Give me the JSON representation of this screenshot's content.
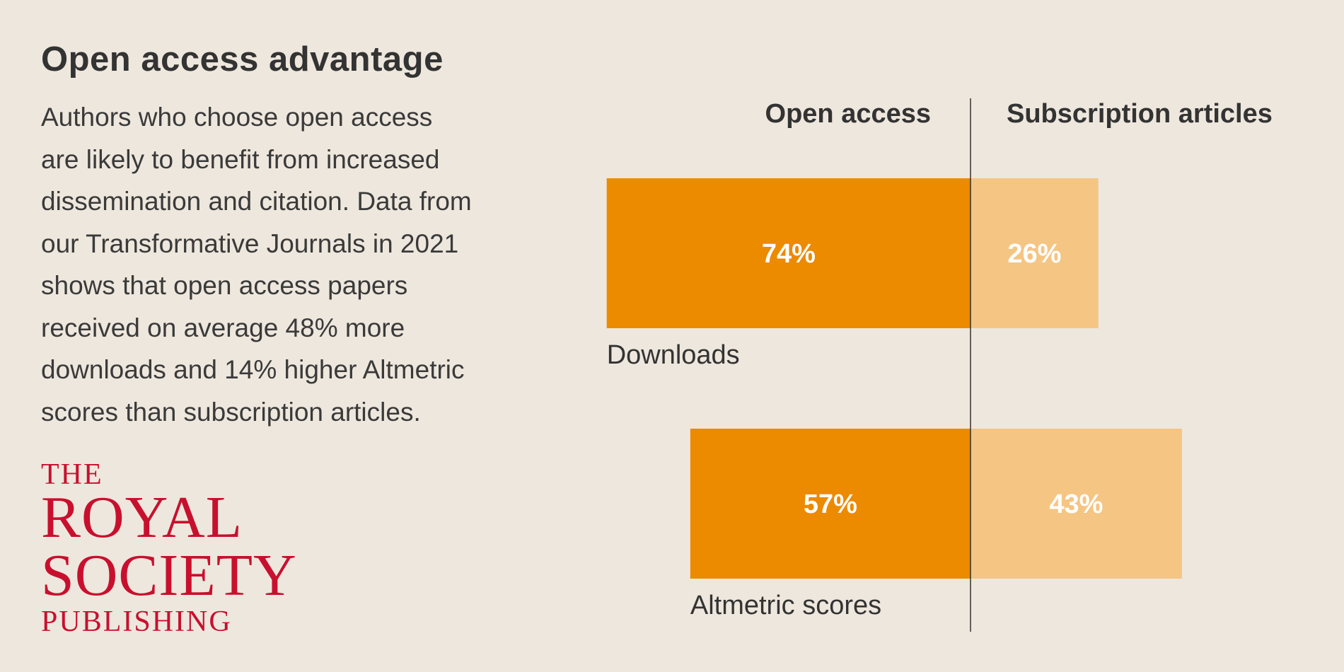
{
  "header": {
    "title": "Open access advantage",
    "body_lines": [
      "Authors who choose open access",
      "are likely to benefit from increased",
      "dissemination and citation. Data from",
      "our Transformative Journals in 2021",
      "shows that open access papers",
      "received on average 48% more",
      "downloads and 14% higher Altmetric",
      "scores than subscription articles."
    ]
  },
  "logo": {
    "line1": "THE",
    "line2": "ROYAL",
    "line3": "SOCIETY",
    "line4": "PUBLISHING"
  },
  "colors": {
    "background": "#EEE7DD",
    "open_access": "#EC8A00",
    "subscription": "#F5C583",
    "logo": "#C8102E"
  },
  "chart_data": {
    "type": "bar",
    "orientation": "horizontal diverging stacked",
    "categories": [
      "Downloads",
      "Altmetric scores"
    ],
    "series": [
      {
        "name": "Open access",
        "values": [
          74,
          57
        ],
        "labels": [
          "74%",
          "57%"
        ]
      },
      {
        "name": "Subscription articles",
        "values": [
          26,
          43
        ],
        "labels": [
          "26%",
          "43%"
        ]
      }
    ],
    "unit": "%",
    "grid": false
  }
}
